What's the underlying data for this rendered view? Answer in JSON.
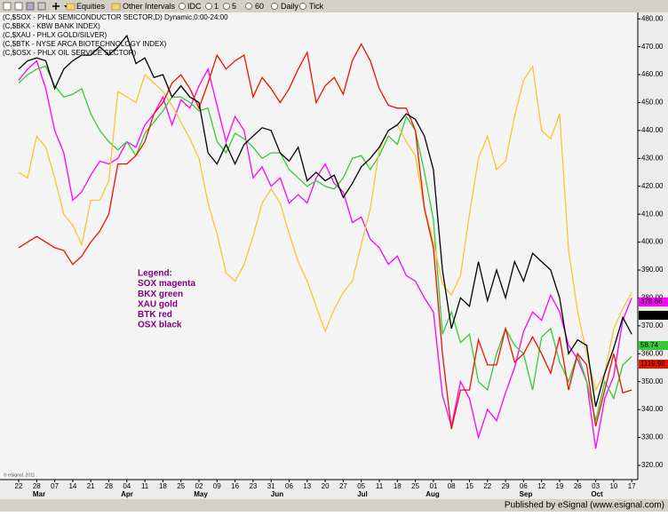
{
  "chart_data": {
    "type": "line",
    "toolbar": [
      "Equities",
      "Other Intervals",
      "IDC",
      "1",
      "5",
      "60",
      "Daily",
      "Tick"
    ],
    "categories": [
      "22",
      null,
      "28",
      null,
      "07",
      null,
      "14",
      null,
      "21",
      null,
      "28",
      null,
      "04",
      null,
      "11",
      null,
      "18",
      null,
      "25",
      null,
      "02",
      null,
      "09",
      null,
      "16",
      null,
      "23",
      null,
      "31",
      null,
      "06",
      null,
      "13",
      null,
      "20",
      null,
      "27",
      null,
      "05",
      null,
      "11",
      null,
      "18",
      null,
      "25",
      null,
      "01",
      null,
      "08",
      null,
      "15",
      null,
      "22",
      null,
      "29",
      null,
      "06",
      null,
      "12",
      null,
      "19",
      null,
      "26",
      null,
      "03",
      null,
      "10",
      null,
      "17"
    ],
    "months": [
      "Mar",
      "Apr",
      "May",
      "Jun",
      "Jul",
      "Aug",
      "Sep",
      "Oct"
    ],
    "ylim": [
      314.9,
      482.3
    ],
    "yticks": [
      {
        "value": 320,
        "label": "320.00"
      },
      {
        "value": 330,
        "label": "330.00"
      },
      {
        "value": 340,
        "label": "340.00"
      },
      {
        "value": 350,
        "label": "350.00"
      },
      {
        "value": 360,
        "label": "360.00"
      },
      {
        "value": 370,
        "label": "370.00"
      },
      {
        "value": 380,
        "label": "380.00"
      },
      {
        "value": 390,
        "label": "390.00"
      },
      {
        "value": 400,
        "label": "400.00"
      },
      {
        "value": 410,
        "label": "410.00"
      },
      {
        "value": 420,
        "label": "420.00"
      },
      {
        "value": 430,
        "label": "430.00"
      },
      {
        "value": 440,
        "label": "440.00"
      },
      {
        "value": 450,
        "label": "450.00"
      },
      {
        "value": 460,
        "label": "460.00"
      },
      {
        "value": 470,
        "label": "470.00"
      },
      {
        "value": 480,
        "label": "480.00"
      }
    ],
    "grid": false,
    "series": [
      {
        "name": "(C,$SOX - PHLX SEMICONDUCTOR SECTOR,D) Dynamic,0:00-24:00",
        "color": "#ff00ff",
        "price_tag": "378.66",
        "values": [
          458,
          462,
          465,
          455,
          440,
          432,
          415,
          418,
          424,
          429,
          428,
          430,
          436,
          434,
          442,
          446,
          452,
          442,
          451,
          448,
          456,
          462,
          449,
          436,
          445,
          440,
          423,
          427,
          420,
          423,
          414,
          417,
          414,
          423,
          428,
          421,
          418,
          407,
          409,
          401,
          398,
          392,
          395,
          388,
          386,
          380,
          375,
          345,
          334,
          350,
          344,
          330,
          340,
          336,
          346,
          355,
          368,
          375,
          372,
          381,
          375,
          363,
          358,
          350,
          326,
          344,
          352,
          372,
          380
        ]
      },
      {
        "name": "(C,$BKX - KBW BANK INDEX)",
        "color": "#33cc33",
        "price_tag": "58.74",
        "values": [
          457,
          460,
          462,
          463,
          456,
          452,
          453,
          455,
          446,
          440,
          436,
          433,
          436,
          431,
          439,
          443,
          447,
          452,
          452,
          450,
          447,
          448,
          436,
          432,
          439,
          437,
          434,
          430,
          432,
          432,
          426,
          423,
          420,
          422,
          420,
          419,
          423,
          430,
          431,
          426,
          431,
          438,
          435,
          445,
          440,
          425,
          408,
          367,
          375,
          364,
          367,
          350,
          347,
          360,
          369,
          363,
          360,
          347,
          366,
          369,
          357,
          350,
          360,
          350,
          336,
          350,
          344,
          356,
          359
        ]
      },
      {
        "name": "(C,$XAU - PHLX GOLD/SILVER)",
        "color": "#f7c631",
        "values": [
          425,
          423,
          438,
          434,
          423,
          410,
          406,
          399,
          415,
          415,
          422,
          454,
          452,
          450,
          460,
          457,
          454,
          449,
          443,
          437,
          430,
          414,
          403,
          389,
          386,
          392,
          402,
          414,
          419,
          414,
          403,
          393,
          386,
          377,
          368,
          376,
          382,
          386,
          399,
          412,
          433,
          440,
          442,
          436,
          431,
          412,
          400,
          385,
          381,
          388,
          410,
          430,
          438,
          426,
          429,
          445,
          458,
          463,
          440,
          437,
          446,
          397,
          375,
          360,
          347,
          353,
          369,
          376,
          382
        ]
      },
      {
        "name": "(C,$BTK - NYSE ARCA BIOTECHNOLOGY INDEX)",
        "color": "#ee1100",
        "price_tag": "1119.98",
        "values": [
          398,
          400,
          402,
          400,
          398,
          397,
          392,
          395,
          400,
          404,
          410,
          428,
          428,
          431,
          436,
          446,
          450,
          457,
          460,
          455,
          448,
          457,
          467,
          462,
          465,
          467,
          452,
          459,
          455,
          450,
          455,
          462,
          468,
          450,
          456,
          459,
          453,
          465,
          471,
          465,
          455,
          449,
          448,
          448,
          440,
          412,
          398,
          360,
          333,
          347,
          347,
          365,
          356,
          356,
          369,
          357,
          360,
          366,
          360,
          353,
          366,
          347,
          360,
          356,
          334,
          347,
          360,
          346,
          347
        ]
      },
      {
        "name": "(C,$OSX - PHLX OIL SERVICE SECTOR)",
        "color": "#000000",
        "price_tag": "217.61",
        "values": [
          462,
          465,
          466,
          465,
          455,
          462,
          465,
          467,
          467,
          470,
          467,
          470,
          474,
          464,
          466,
          459,
          460,
          452,
          456,
          452,
          450,
          432,
          428,
          435,
          428,
          435,
          438,
          441,
          440,
          432,
          429,
          434,
          422,
          425,
          422,
          424,
          416,
          421,
          427,
          430,
          434,
          440,
          442,
          446,
          444,
          438,
          426,
          390,
          369,
          380,
          377,
          393,
          379,
          390,
          380,
          393,
          386,
          396,
          393,
          390,
          380,
          360,
          365,
          363,
          341,
          353,
          362,
          373,
          367
        ]
      }
    ],
    "annotations": [
      "Legend:",
      "SOX magenta",
      "BKX green",
      "XAU gold",
      "BTK red",
      "OSX black"
    ],
    "watermark": "© eSignal, 2011",
    "footer": "Published by eSignal (www.esignal.com)"
  }
}
